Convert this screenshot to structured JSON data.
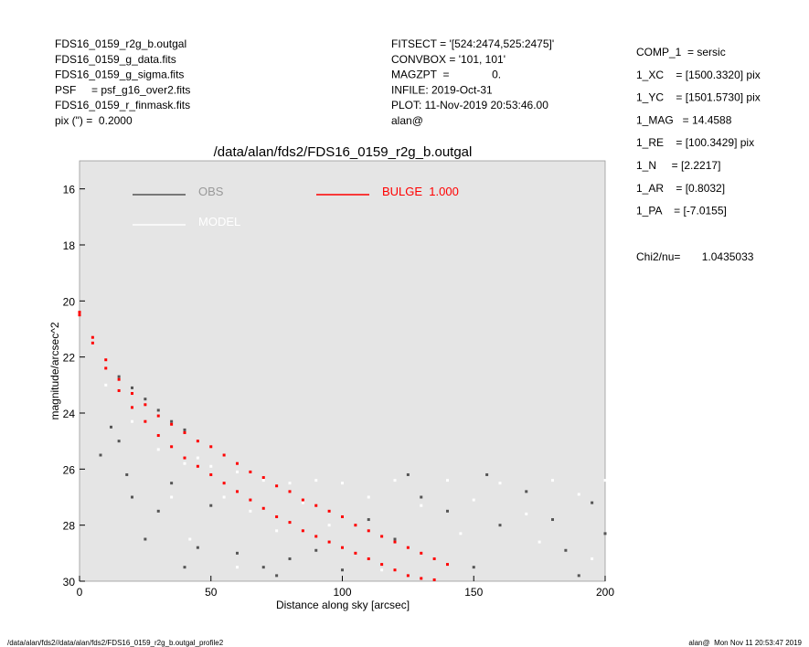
{
  "header": {
    "left": [
      "FDS16_0159_r2g_b.outgal",
      "FDS16_0159_g_data.fits",
      "FDS16_0159_g_sigma.fits",
      "PSF     = psf_g16_over2.fits",
      "FDS16_0159_r_finmask.fits",
      "pix (\") =  0.2000"
    ],
    "middle": [
      "FITSECT = '[524:2474,525:2475]'",
      "CONVBOX = '101, 101'",
      "MAGZPT  =              0.",
      "INFILE: 2019-Oct-31",
      "PLOT: 11-Nov-2019 20:53:46.00",
      "alan@"
    ],
    "right": [
      "COMP_1  = sersic",
      "1_XC    = [1500.3320] pix",
      "1_YC    = [1501.5730] pix",
      "1_MAG   = 14.4588",
      "1_RE    = [100.3429] pix",
      "1_N     = [2.2217]",
      "1_AR    = [0.8032]",
      "1_PA    = [-7.0155]"
    ],
    "chi2": "Chi2/nu=       1.0435033"
  },
  "footer": {
    "left": "/data/alan/fds2//data/alan/fds2/FDS16_0159_r2g_b.outgal_profile2",
    "right": "alan@  Mon Nov 11 20:53:47 2019"
  },
  "chart_data": {
    "type": "scatter",
    "title": "/data/alan/fds2/FDS16_0159_r2g_b.outgal",
    "x_label": "Distance along sky [arcsec]",
    "y_label": "magnitude/arcsec^2",
    "xlim": [
      0,
      200
    ],
    "xticks": [
      0,
      50,
      100,
      150,
      200
    ],
    "ylim": [
      30,
      15
    ],
    "yticks": [
      16,
      18,
      20,
      22,
      24,
      26,
      28,
      30
    ],
    "background": "#e5e5e5",
    "series": [
      {
        "name": "OBS",
        "color": "#555555",
        "x": [
          15,
          20,
          25,
          30,
          35,
          40,
          8,
          12,
          15,
          18,
          20,
          25,
          30,
          40,
          45,
          60,
          70,
          80,
          100,
          120,
          140,
          160,
          180,
          200,
          150,
          190,
          130,
          110,
          170,
          155,
          185,
          195,
          90,
          50,
          35,
          75,
          125
        ],
        "values": [
          22.7,
          23.1,
          23.5,
          23.9,
          24.3,
          24.6,
          25.5,
          24.5,
          25,
          26.2,
          27,
          28.5,
          27.5,
          29.5,
          28.8,
          29,
          29.5,
          29.2,
          29.6,
          28.5,
          27.5,
          28,
          27.8,
          28.3,
          29.5,
          29.8,
          27,
          27.8,
          26.8,
          26.2,
          28.9,
          27.2,
          28.9,
          27.3,
          26.5,
          29.8,
          26.2
        ]
      },
      {
        "name": "MODEL",
        "color": "#ffffff",
        "x": [
          10,
          20,
          30,
          40,
          45,
          50,
          60,
          70,
          80,
          90,
          100,
          120,
          140,
          160,
          180,
          200,
          55,
          65,
          85,
          110,
          130,
          150,
          170,
          190,
          35,
          42,
          75,
          95,
          145,
          175,
          60,
          115,
          195
        ],
        "values": [
          23,
          24.3,
          25.3,
          25.8,
          25.6,
          25.9,
          26.1,
          26.4,
          26.5,
          26.4,
          26.5,
          26.4,
          26.4,
          26.5,
          26.4,
          26.4,
          27,
          27.5,
          27.2,
          27,
          27.3,
          27.1,
          27.6,
          26.9,
          27,
          28.5,
          28.2,
          28,
          28.3,
          28.6,
          29.5,
          29.6,
          29.2
        ]
      },
      {
        "name": "BULGE  1.000",
        "color": "#ff0000",
        "x": [
          0,
          5,
          10,
          15,
          20,
          25,
          30,
          35,
          40,
          45,
          50,
          55,
          60,
          65,
          70,
          75,
          80,
          85,
          90,
          95,
          100,
          105,
          110,
          115,
          120,
          125,
          130,
          135,
          0,
          5,
          10,
          15,
          20,
          25,
          30,
          35,
          40,
          45,
          50,
          55,
          60,
          65,
          70,
          75,
          80,
          85,
          90,
          95,
          100,
          105,
          110,
          115,
          120,
          125,
          130,
          135,
          140
        ],
        "values": [
          20.4,
          21.3,
          22.1,
          22.8,
          23.3,
          23.7,
          24.1,
          24.4,
          24.7,
          25.0,
          25.2,
          25.5,
          25.8,
          26.1,
          26.3,
          26.6,
          26.8,
          27.1,
          27.3,
          27.5,
          27.7,
          28.0,
          28.2,
          28.4,
          28.6,
          28.8,
          29.0,
          29.2,
          20.5,
          21.5,
          22.4,
          23.2,
          23.8,
          24.3,
          24.8,
          25.2,
          25.6,
          25.9,
          26.2,
          26.5,
          26.8,
          27.1,
          27.4,
          27.7,
          27.9,
          28.2,
          28.4,
          28.6,
          28.8,
          29.0,
          29.2,
          29.4,
          29.6,
          29.8,
          29.9,
          29.95,
          29.4
        ]
      }
    ]
  }
}
